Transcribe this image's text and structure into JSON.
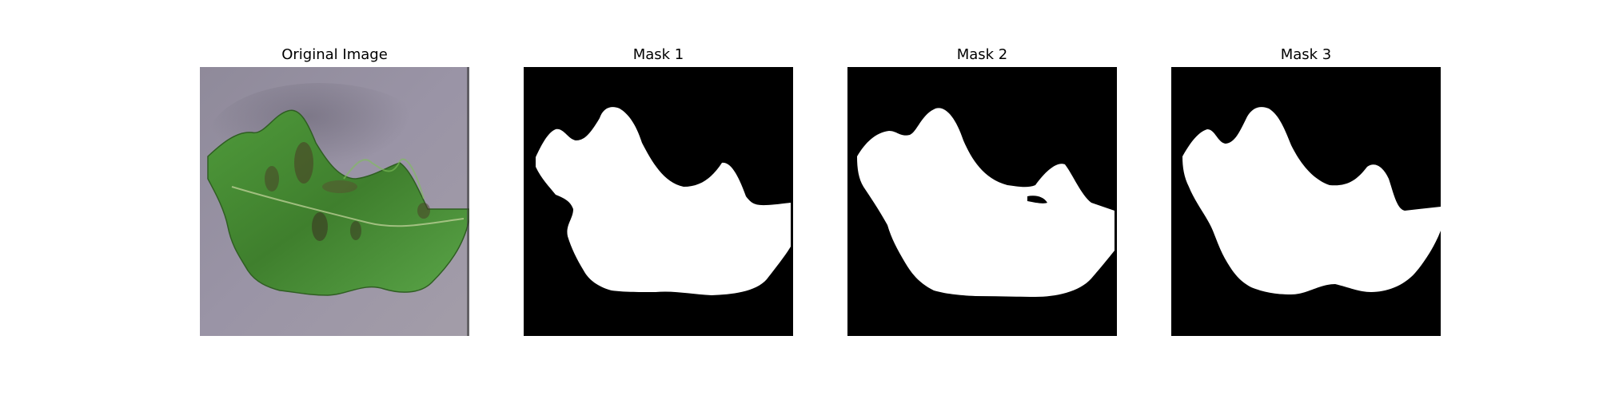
{
  "panels": [
    {
      "title": "Original Image",
      "kind": "photo"
    },
    {
      "title": "Mask 1",
      "kind": "mask"
    },
    {
      "title": "Mask 2",
      "kind": "mask"
    },
    {
      "title": "Mask 3",
      "kind": "mask"
    }
  ],
  "colors": {
    "background": "#ffffff",
    "mask_background": "#000000",
    "mask_foreground": "#ffffff",
    "photo_background": "#908c9c",
    "leaf": "#4f8f3a"
  }
}
